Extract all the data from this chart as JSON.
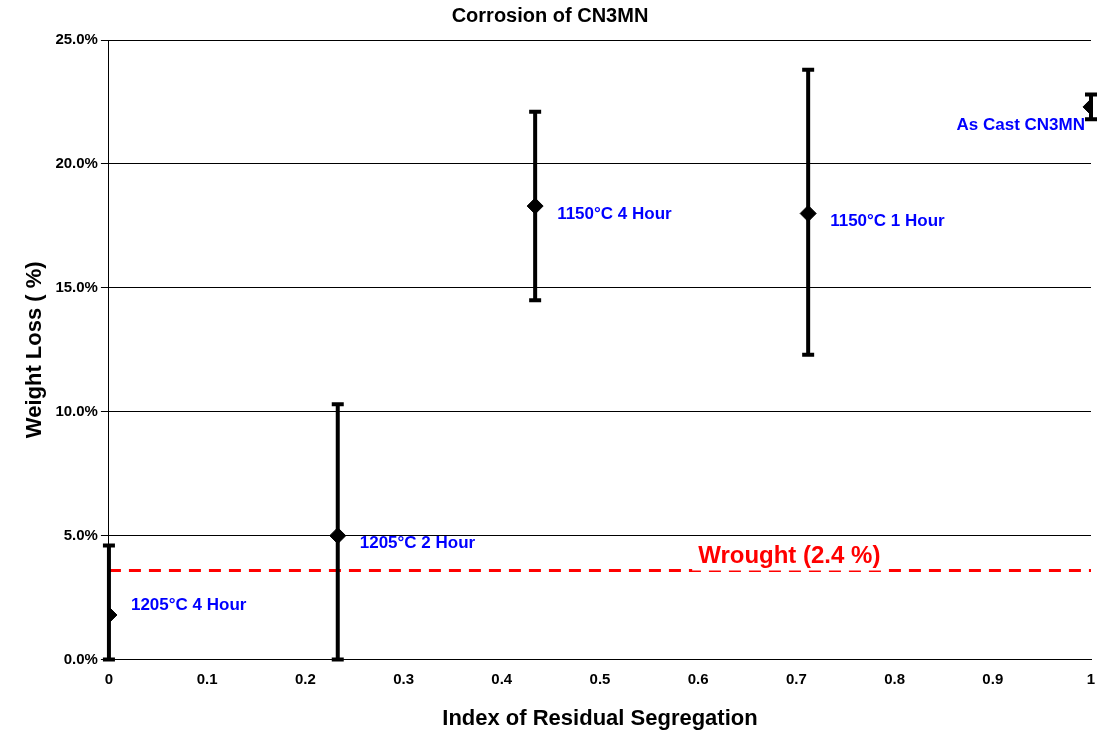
{
  "chart_data": {
    "type": "scatter",
    "title": "Corrosion of CN3MN",
    "xlabel": "Index of Residual Segregation",
    "ylabel": "Weight Loss ( %)",
    "x": [
      0,
      0.233,
      0.434,
      0.712,
      1
    ],
    "values": [
      1.8,
      5.0,
      18.3,
      18.0,
      22.3
    ],
    "errors": [
      [
        0,
        4.6
      ],
      [
        0,
        10.3
      ],
      [
        14.5,
        22.1
      ],
      [
        12.3,
        23.8
      ],
      [
        21.8,
        22.8
      ]
    ],
    "color": "#000000",
    "marker": "diamond",
    "grid": "y",
    "legend": false,
    "xlim": [
      0,
      1
    ],
    "xticks": [
      0,
      0.1,
      0.2,
      0.3,
      0.4,
      0.5,
      0.6,
      0.7,
      0.8,
      0.9,
      1
    ],
    "ylim": [
      0,
      25
    ],
    "yticks": [
      {
        "value": 0,
        "label": "0.0%"
      },
      {
        "value": 5,
        "label": "5.0%"
      },
      {
        "value": 10,
        "label": "10.0%"
      },
      {
        "value": 15,
        "label": "15.0%"
      },
      {
        "value": 20,
        "label": "20.0%"
      },
      {
        "value": 25,
        "label": "25.0%"
      }
    ],
    "ref_lines": [
      {
        "axis": "y",
        "value": 3.6,
        "label": "Wrought (2.4 %)",
        "color": "#ff0000",
        "line_style": "dashed"
      }
    ],
    "annotations": [
      {
        "text": "1205°C 4 Hour",
        "x": 0,
        "y": 1.8
      },
      {
        "text": "1205°C 2 Hour",
        "x": 0.233,
        "y": 5.0
      },
      {
        "text": "1150°C 4 Hour",
        "x": 0.434,
        "y": 18.3
      },
      {
        "text": "1150°C 1 Hour",
        "x": 0.712,
        "y": 18.0
      },
      {
        "text": "As Cast CN3MN",
        "x": 1,
        "y": 22.3
      }
    ]
  }
}
